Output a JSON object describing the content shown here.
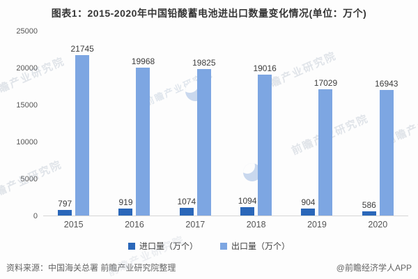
{
  "title": "图表1：2015-2020年中国铅酸蓄电池进出口数量变化情况(单位：万个)",
  "chart_data": {
    "type": "bar",
    "categories": [
      "2015",
      "2016",
      "2017",
      "2018",
      "2019",
      "2020"
    ],
    "series": [
      {
        "name": "进口量（万个）",
        "color": "#2a67b9",
        "values": [
          797,
          919,
          1074,
          1094,
          904,
          586
        ]
      },
      {
        "name": "出口量（万个）",
        "color": "#7da6e2",
        "values": [
          21745,
          19968,
          19825,
          19016,
          17029,
          16943
        ]
      }
    ],
    "title": "图表1：2015-2020年中国铅酸蓄电池进出口数量变化情况(单位：万个)",
    "xlabel": "",
    "ylabel": "",
    "ylim": [
      0,
      25000
    ],
    "yticks": [
      "0",
      "5000",
      "10000",
      "15000",
      "20000",
      "25000"
    ],
    "grid": false,
    "legend_position": "bottom",
    "value_labels_shown": true
  },
  "footer": {
    "source": "资料来源：中国海关总署 前瞻产业研究院整理",
    "credit": "@前瞻经济学人APP"
  },
  "watermark": {
    "text": "前瞻产业研究院"
  }
}
